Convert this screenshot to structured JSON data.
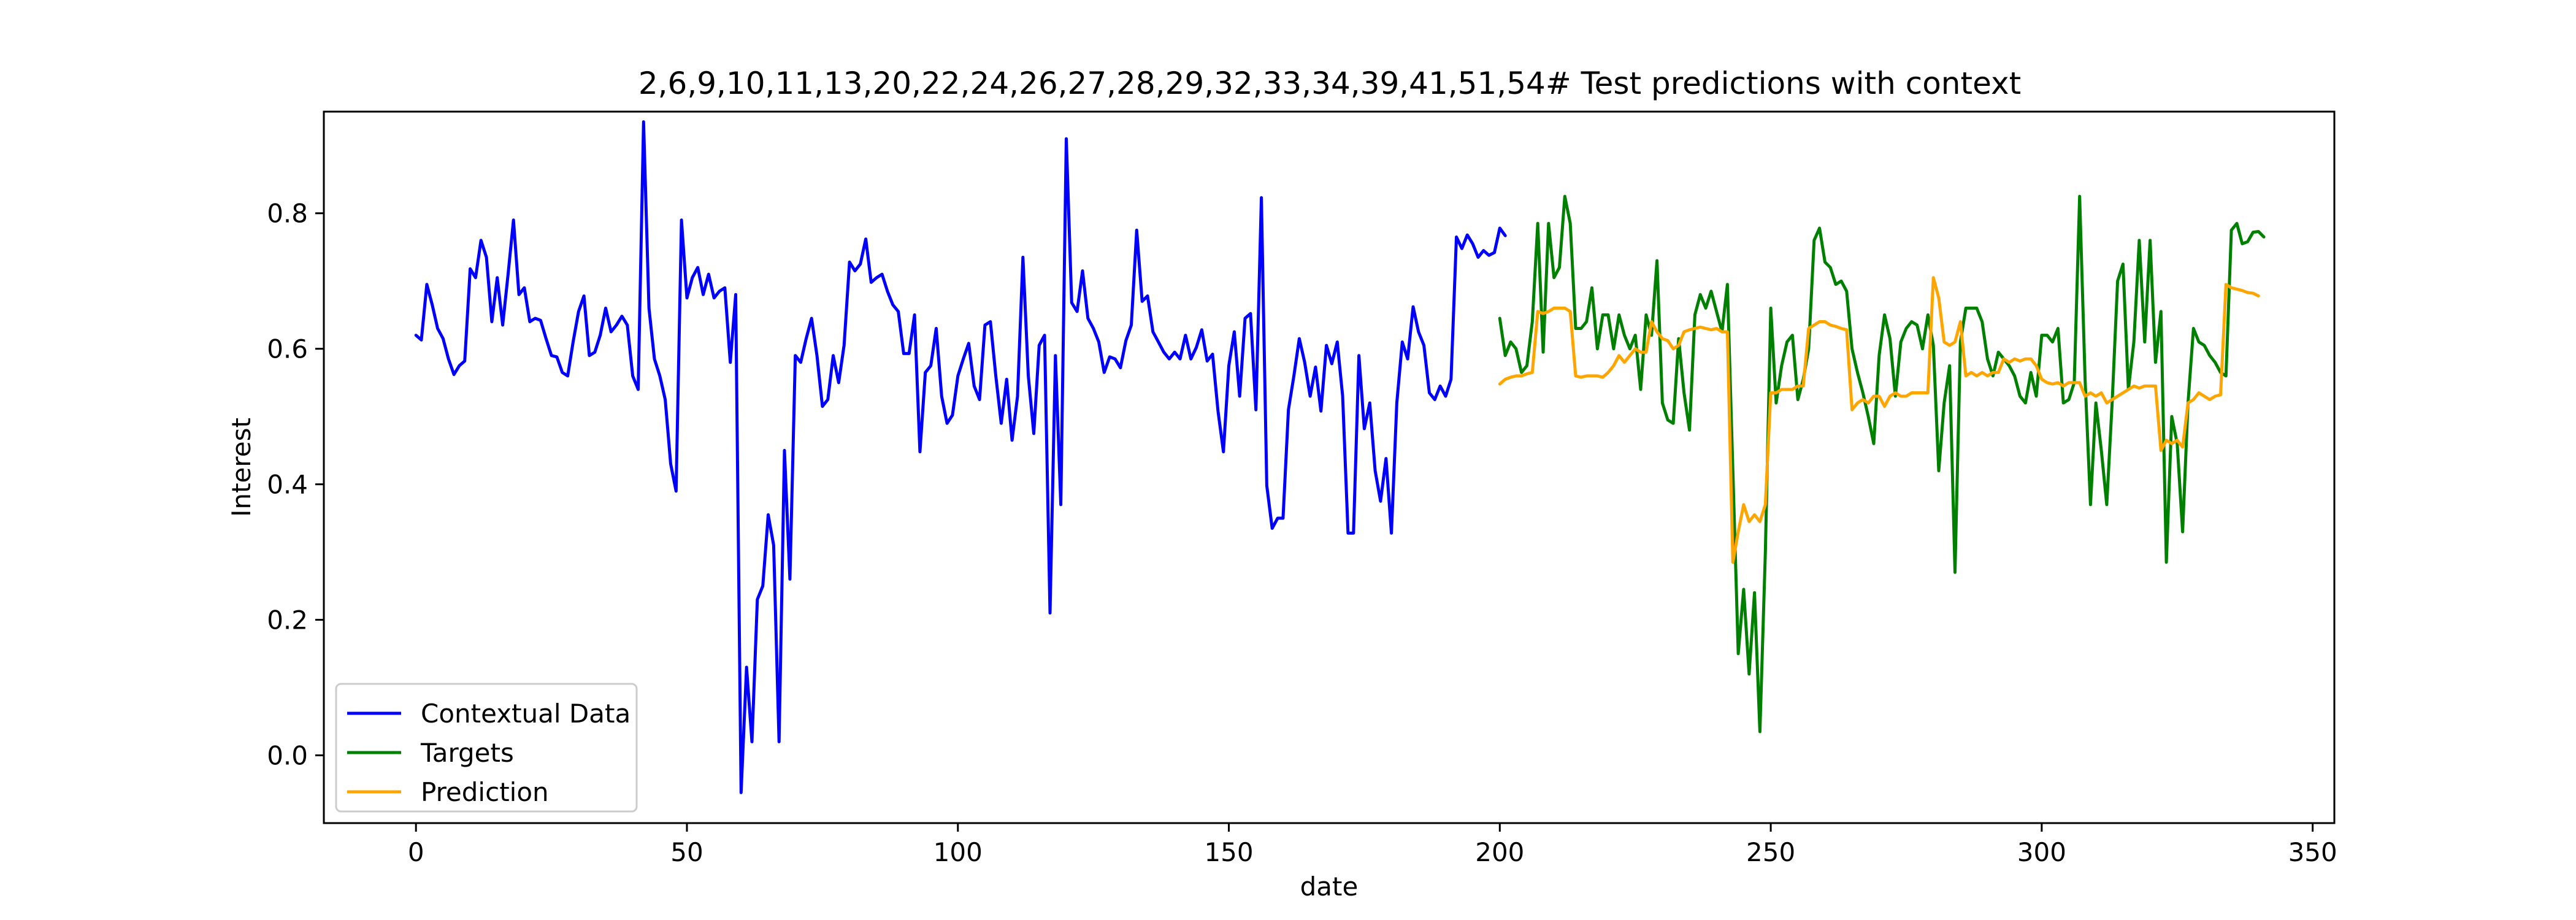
{
  "chart_data": {
    "type": "line",
    "title": "2,6,9,10,11,13,20,22,24,26,27,28,29,32,33,34,39,41,51,54# Test predictions with context",
    "xlabel": "date",
    "ylabel": "Interest",
    "xlim": [
      -17,
      354
    ],
    "ylim": [
      -0.1,
      0.95
    ],
    "xticks": [
      "0",
      "50",
      "100",
      "150",
      "200",
      "250",
      "300",
      "350"
    ],
    "yticks": [
      "0.0",
      "0.2",
      "0.4",
      "0.6",
      "0.8"
    ],
    "grid": false,
    "legend_position": "lower-left",
    "series": [
      {
        "name": "Contextual Data",
        "color": "#0000ff",
        "x_start": 0,
        "values": [
          0.62,
          0.613,
          0.695,
          0.665,
          0.63,
          0.615,
          0.585,
          0.562,
          0.575,
          0.582,
          0.718,
          0.705,
          0.76,
          0.735,
          0.64,
          0.705,
          0.635,
          0.71,
          0.79,
          0.68,
          0.69,
          0.64,
          0.645,
          0.642,
          0.615,
          0.59,
          0.588,
          0.565,
          0.56,
          0.61,
          0.655,
          0.678,
          0.59,
          0.595,
          0.62,
          0.66,
          0.625,
          0.635,
          0.648,
          0.635,
          0.56,
          0.54,
          0.935,
          0.66,
          0.585,
          0.56,
          0.525,
          0.43,
          0.39,
          0.79,
          0.675,
          0.705,
          0.72,
          0.68,
          0.71,
          0.675,
          0.685,
          0.69,
          0.58,
          0.68,
          -0.055,
          0.13,
          0.02,
          0.23,
          0.25,
          0.355,
          0.31,
          0.02,
          0.45,
          0.26,
          0.59,
          0.58,
          0.615,
          0.645,
          0.59,
          0.515,
          0.525,
          0.59,
          0.55,
          0.605,
          0.728,
          0.715,
          0.725,
          0.762,
          0.698,
          0.705,
          0.71,
          0.685,
          0.665,
          0.655,
          0.593,
          0.593,
          0.65,
          0.448,
          0.565,
          0.575,
          0.63,
          0.53,
          0.49,
          0.502,
          0.56,
          0.585,
          0.608,
          0.545,
          0.525,
          0.635,
          0.64,
          0.56,
          0.49,
          0.555,
          0.465,
          0.53,
          0.735,
          0.56,
          0.475,
          0.605,
          0.62,
          0.21,
          0.59,
          0.37,
          0.91,
          0.668,
          0.655,
          0.715,
          0.645,
          0.63,
          0.61,
          0.565,
          0.588,
          0.585,
          0.572,
          0.612,
          0.635,
          0.775,
          0.67,
          0.678,
          0.625,
          0.61,
          0.595,
          0.585,
          0.595,
          0.585,
          0.62,
          0.585,
          0.602,
          0.628,
          0.582,
          0.592,
          0.508,
          0.448,
          0.575,
          0.625,
          0.53,
          0.645,
          0.652,
          0.51,
          0.823,
          0.398,
          0.335,
          0.35,
          0.35,
          0.51,
          0.56,
          0.615,
          0.58,
          0.53,
          0.573,
          0.508,
          0.605,
          0.578,
          0.61,
          0.53,
          0.328,
          0.328,
          0.59,
          0.482,
          0.52,
          0.42,
          0.375,
          0.438,
          0.328,
          0.52,
          0.61,
          0.585,
          0.662,
          0.625,
          0.605,
          0.535,
          0.525,
          0.545,
          0.53,
          0.555,
          0.765,
          0.748,
          0.768,
          0.755,
          0.735,
          0.745,
          0.738,
          0.742,
          0.778,
          0.767
        ]
      },
      {
        "name": "Targets",
        "color": "#008000",
        "x_start": 200,
        "values": [
          0.645,
          0.59,
          0.61,
          0.6,
          0.565,
          0.575,
          0.64,
          0.785,
          0.595,
          0.785,
          0.705,
          0.72,
          0.825,
          0.785,
          0.63,
          0.63,
          0.64,
          0.69,
          0.6,
          0.65,
          0.65,
          0.6,
          0.65,
          0.62,
          0.6,
          0.62,
          0.54,
          0.65,
          0.62,
          0.73,
          0.52,
          0.495,
          0.49,
          0.615,
          0.535,
          0.48,
          0.65,
          0.68,
          0.66,
          0.685,
          0.655,
          0.625,
          0.695,
          0.42,
          0.15,
          0.245,
          0.12,
          0.24,
          0.035,
          0.3,
          0.66,
          0.52,
          0.575,
          0.61,
          0.62,
          0.525,
          0.555,
          0.6,
          0.76,
          0.778,
          0.728,
          0.72,
          0.695,
          0.7,
          0.685,
          0.6,
          0.565,
          0.535,
          0.5,
          0.46,
          0.59,
          0.65,
          0.615,
          0.53,
          0.61,
          0.63,
          0.64,
          0.635,
          0.6,
          0.65,
          0.605,
          0.42,
          0.52,
          0.575,
          0.27,
          0.61,
          0.66,
          0.66,
          0.66,
          0.64,
          0.585,
          0.56,
          0.595,
          0.585,
          0.575,
          0.56,
          0.53,
          0.52,
          0.565,
          0.53,
          0.62,
          0.62,
          0.61,
          0.63,
          0.52,
          0.525,
          0.55,
          0.825,
          0.555,
          0.37,
          0.52,
          0.45,
          0.37,
          0.52,
          0.7,
          0.725,
          0.54,
          0.61,
          0.76,
          0.61,
          0.76,
          0.58,
          0.655,
          0.285,
          0.5,
          0.46,
          0.33,
          0.52,
          0.63,
          0.61,
          0.605,
          0.59,
          0.58,
          0.565,
          0.56,
          0.775,
          0.785,
          0.755,
          0.758,
          0.772,
          0.773,
          0.765
        ]
      },
      {
        "name": "Prediction",
        "color": "#ffa500",
        "x_start": 200,
        "values": [
          0.548,
          0.555,
          0.558,
          0.56,
          0.56,
          0.563,
          0.565,
          0.655,
          0.652,
          0.655,
          0.66,
          0.66,
          0.66,
          0.655,
          0.56,
          0.558,
          0.56,
          0.56,
          0.56,
          0.558,
          0.565,
          0.575,
          0.59,
          0.58,
          0.59,
          0.6,
          0.595,
          0.595,
          0.64,
          0.625,
          0.615,
          0.612,
          0.6,
          0.605,
          0.625,
          0.628,
          0.63,
          0.632,
          0.63,
          0.628,
          0.63,
          0.625,
          0.625,
          0.285,
          0.33,
          0.37,
          0.345,
          0.355,
          0.345,
          0.37,
          0.535,
          0.535,
          0.54,
          0.54,
          0.54,
          0.545,
          0.545,
          0.63,
          0.635,
          0.64,
          0.64,
          0.635,
          0.633,
          0.63,
          0.628,
          0.51,
          0.52,
          0.525,
          0.52,
          0.53,
          0.53,
          0.515,
          0.53,
          0.535,
          0.53,
          0.53,
          0.535,
          0.535,
          0.535,
          0.535,
          0.705,
          0.675,
          0.61,
          0.605,
          0.61,
          0.64,
          0.56,
          0.565,
          0.56,
          0.565,
          0.56,
          0.565,
          0.565,
          0.585,
          0.58,
          0.585,
          0.582,
          0.585,
          0.585,
          0.575,
          0.555,
          0.55,
          0.548,
          0.55,
          0.545,
          0.55,
          0.55,
          0.55,
          0.53,
          0.535,
          0.53,
          0.535,
          0.52,
          0.525,
          0.53,
          0.535,
          0.54,
          0.545,
          0.542,
          0.545,
          0.545,
          0.545,
          0.45,
          0.465,
          0.46,
          0.465,
          0.455,
          0.52,
          0.525,
          0.535,
          0.53,
          0.525,
          0.53,
          0.532,
          0.695,
          0.69,
          0.688,
          0.686,
          0.683,
          0.682,
          0.678
        ]
      }
    ]
  }
}
